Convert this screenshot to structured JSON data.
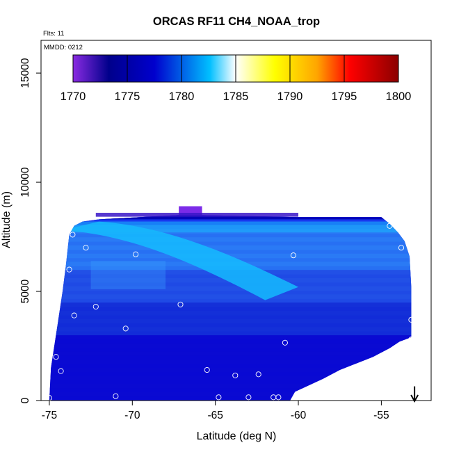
{
  "chart_data": {
    "type": "heatmap",
    "title": "ORCAS RF11 CH4_NOAA_trop",
    "annotations": {
      "flights": "Flts: 11",
      "date": "MMDD: 0212"
    },
    "xlabel": "Latitude (deg N)",
    "ylabel": "Altitude (m)",
    "xlim": [
      -75.5,
      -52
    ],
    "ylim": [
      0,
      16500
    ],
    "xticks": [
      -75,
      -70,
      -65,
      -60,
      -55
    ],
    "xtick_labels": [
      "-75",
      "-70",
      "-65",
      "-60",
      "-55"
    ],
    "yticks": [
      0,
      5000,
      10000,
      15000
    ],
    "ytick_labels": [
      "0",
      "5000",
      "10000",
      "15000"
    ],
    "colorbar": {
      "range": [
        1770,
        1800
      ],
      "ticks": [
        1770,
        1775,
        1780,
        1785,
        1790,
        1795,
        1800
      ],
      "tick_labels": [
        "1770",
        "1775",
        "1780",
        "1785",
        "1790",
        "1795",
        "1800"
      ],
      "colors": [
        "#8a2be2",
        "#00008b",
        "#0000cd",
        "#00bfff",
        "#ffffff",
        "#ffff00",
        "#ffa500",
        "#ff0000",
        "#8b0000"
      ],
      "color_positions": [
        0,
        0.11,
        0.25,
        0.42,
        0.5,
        0.62,
        0.75,
        0.85,
        1
      ]
    },
    "field_outline": [
      [
        -75.0,
        0
      ],
      [
        -74.9,
        1500
      ],
      [
        -74.7,
        2500
      ],
      [
        -74.5,
        3500
      ],
      [
        -74.2,
        5000
      ],
      [
        -74.0,
        6200
      ],
      [
        -73.8,
        7600
      ],
      [
        -73.5,
        8000
      ],
      [
        -73.0,
        8200
      ],
      [
        -72.0,
        8300
      ],
      [
        -67.2,
        8500
      ],
      [
        -66.0,
        8500
      ],
      [
        -60.0,
        8400
      ],
      [
        -55.0,
        8400
      ],
      [
        -54.5,
        8100
      ],
      [
        -54.0,
        7700
      ],
      [
        -53.6,
        7300
      ],
      [
        -53.3,
        6600
      ],
      [
        -53.2,
        5200
      ],
      [
        -53.2,
        2900
      ],
      [
        -53.9,
        2700
      ],
      [
        -54.5,
        2400
      ],
      [
        -55.5,
        2000
      ],
      [
        -56.5,
        1700
      ],
      [
        -57.5,
        1400
      ],
      [
        -58.5,
        1000
      ],
      [
        -59.5,
        650
      ],
      [
        -60.2,
        400
      ],
      [
        -60.5,
        0
      ]
    ],
    "samples": [
      {
        "lat": -75.0,
        "alt": 120
      },
      {
        "lat": -74.6,
        "alt": 2000
      },
      {
        "lat": -74.3,
        "alt": 1350
      },
      {
        "lat": -73.8,
        "alt": 6000
      },
      {
        "lat": -73.6,
        "alt": 7600
      },
      {
        "lat": -73.5,
        "alt": 3900
      },
      {
        "lat": -72.8,
        "alt": 7000
      },
      {
        "lat": -72.2,
        "alt": 4300
      },
      {
        "lat": -71.0,
        "alt": 200
      },
      {
        "lat": -70.4,
        "alt": 3300
      },
      {
        "lat": -69.8,
        "alt": 6700
      },
      {
        "lat": -67.1,
        "alt": 4400
      },
      {
        "lat": -65.5,
        "alt": 1400
      },
      {
        "lat": -64.8,
        "alt": 150
      },
      {
        "lat": -63.8,
        "alt": 1150
      },
      {
        "lat": -63.0,
        "alt": 150
      },
      {
        "lat": -62.4,
        "alt": 1200
      },
      {
        "lat": -61.5,
        "alt": 150
      },
      {
        "lat": -61.2,
        "alt": 150
      },
      {
        "lat": -60.8,
        "alt": 2650
      },
      {
        "lat": -60.3,
        "alt": 6650
      },
      {
        "lat": -54.5,
        "alt": 8000
      },
      {
        "lat": -53.8,
        "alt": 7000
      },
      {
        "lat": -53.2,
        "alt": 3700
      },
      {
        "lat": -53.2,
        "alt": 2800
      }
    ],
    "marker": {
      "type": "arrow-down",
      "lat": -53.0
    }
  }
}
